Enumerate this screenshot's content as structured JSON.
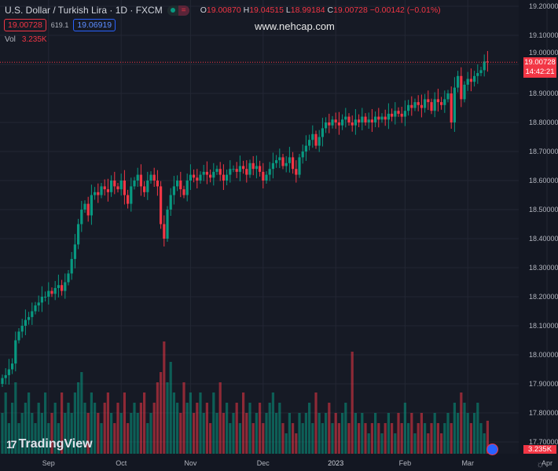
{
  "header": {
    "title": "U.S. Dollar / Turkish Lira · 1D · FXCM",
    "ohlc": {
      "o_label": "O",
      "o": "19.00870",
      "h_label": "H",
      "h": "19.04515",
      "l_label": "L",
      "l": "18.99184",
      "c_label": "C",
      "c": "19.00728",
      "change": "−0.00142 (−0.01%)"
    },
    "sell_price": "19.00728",
    "spread": "619.1",
    "buy_price": "19.06919",
    "vol_label": "Vol",
    "vol_value": "3.235K",
    "pill_eq": "="
  },
  "watermark": "www.nehcap.com",
  "logo_text": "TradingView",
  "last_price_label": "19.00728",
  "countdown": "14:42:21",
  "volume_label": "3.235K",
  "colors": {
    "up": "#089981",
    "down": "#f23645",
    "background": "#161a25",
    "grid": "#232734"
  },
  "chart_data": {
    "type": "candlestick",
    "title": "U.S. Dollar / Turkish Lira · 1D · FXCM",
    "ylim": [
      17.7,
      19.2
    ],
    "y_ticks": [
      "19.20000",
      "19.10000",
      "19.00000",
      "18.90000",
      "18.80000",
      "18.70000",
      "18.60000",
      "18.50000",
      "18.40000",
      "18.30000",
      "18.20000",
      "18.10000",
      "18.00000",
      "17.90000",
      "17.80000",
      "17.70000"
    ],
    "x_ticks": [
      {
        "label": "Sep",
        "index": 14
      },
      {
        "label": "Oct",
        "index": 36
      },
      {
        "label": "Nov",
        "index": 57
      },
      {
        "label": "Dec",
        "index": 79
      },
      {
        "label": "2023",
        "index": 101
      },
      {
        "label": "Feb",
        "index": 122
      },
      {
        "label": "Mar",
        "index": 141
      },
      {
        "label": "Apr",
        "index": 165
      }
    ],
    "first_open": 17.9,
    "closes": [
      17.92,
      17.93,
      17.95,
      17.97,
      18.05,
      18.08,
      18.1,
      18.12,
      18.13,
      18.15,
      18.17,
      18.18,
      18.2,
      18.2,
      18.22,
      18.21,
      18.23,
      18.24,
      18.22,
      18.25,
      18.28,
      18.33,
      18.38,
      18.45,
      18.5,
      18.52,
      18.48,
      18.55,
      18.56,
      18.55,
      18.58,
      18.57,
      18.56,
      18.6,
      18.58,
      18.57,
      18.6,
      18.55,
      18.52,
      18.58,
      18.6,
      18.62,
      18.58,
      18.56,
      18.6,
      18.62,
      18.6,
      18.58,
      18.45,
      18.4,
      18.5,
      18.55,
      18.58,
      18.6,
      18.57,
      18.55,
      18.6,
      18.62,
      18.61,
      18.6,
      18.62,
      18.63,
      18.62,
      18.61,
      18.63,
      18.64,
      18.62,
      18.6,
      18.62,
      18.64,
      18.64,
      18.63,
      18.65,
      18.64,
      18.62,
      18.66,
      18.64,
      18.65,
      18.63,
      18.6,
      18.62,
      18.64,
      18.66,
      18.67,
      18.68,
      18.65,
      18.66,
      18.68,
      18.64,
      18.62,
      18.68,
      18.7,
      18.72,
      18.74,
      18.76,
      18.72,
      18.75,
      18.78,
      18.8,
      18.79,
      18.81,
      18.8,
      18.79,
      18.81,
      18.82,
      18.8,
      18.79,
      18.81,
      18.8,
      18.82,
      18.8,
      18.81,
      18.8,
      18.82,
      18.81,
      18.82,
      18.81,
      18.83,
      18.82,
      18.84,
      18.83,
      18.82,
      18.84,
      18.86,
      18.85,
      18.87,
      18.86,
      18.85,
      18.88,
      18.87,
      18.84,
      18.88,
      18.87,
      18.86,
      18.88,
      18.9,
      18.8,
      18.92,
      18.96,
      18.88,
      18.93,
      18.95,
      18.94,
      18.96,
      18.97,
      18.98,
      19.01,
      19.00728
    ],
    "volumes_k": [
      4,
      6,
      3,
      5,
      7,
      3,
      4,
      5,
      6,
      4,
      3,
      5,
      4,
      6,
      3,
      4,
      5,
      3,
      6,
      4,
      5,
      4,
      6,
      7,
      8,
      5,
      4,
      6,
      5,
      4,
      3,
      5,
      6,
      4,
      3,
      5,
      4,
      6,
      3,
      4,
      5,
      4,
      5,
      6,
      3,
      4,
      5,
      7,
      8,
      11,
      7,
      9,
      6,
      5,
      4,
      7,
      5,
      6,
      4,
      5,
      6,
      4,
      5,
      3,
      6,
      4,
      7,
      4,
      5,
      3,
      4,
      5,
      3,
      6,
      4,
      5,
      3,
      4,
      5,
      3,
      4,
      5,
      6,
      4,
      5,
      3,
      2,
      4,
      3,
      2,
      4,
      3,
      4,
      5,
      3,
      6,
      4,
      3,
      4,
      5,
      3,
      4,
      3,
      4,
      5,
      3,
      10,
      4,
      3,
      4,
      3,
      2,
      3,
      4,
      3,
      2,
      3,
      4,
      3,
      2,
      4,
      3,
      5,
      3,
      4,
      2,
      3,
      4,
      3,
      2,
      3,
      4,
      3,
      2,
      3,
      4,
      3,
      5,
      4,
      6,
      5,
      4,
      3,
      4,
      5,
      3,
      2,
      3.235
    ]
  }
}
